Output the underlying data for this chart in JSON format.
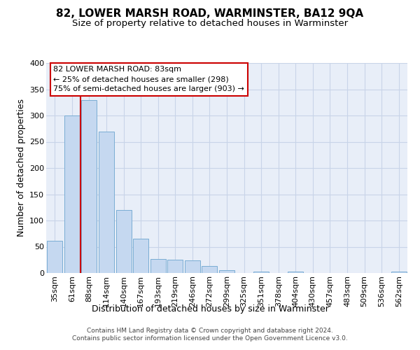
{
  "title": "82, LOWER MARSH ROAD, WARMINSTER, BA12 9QA",
  "subtitle": "Size of property relative to detached houses in Warminster",
  "xlabel": "Distribution of detached houses by size in Warminster",
  "ylabel": "Number of detached properties",
  "bin_labels": [
    "35sqm",
    "61sqm",
    "88sqm",
    "114sqm",
    "140sqm",
    "167sqm",
    "193sqm",
    "219sqm",
    "246sqm",
    "272sqm",
    "299sqm",
    "325sqm",
    "351sqm",
    "378sqm",
    "404sqm",
    "430sqm",
    "457sqm",
    "483sqm",
    "509sqm",
    "536sqm",
    "562sqm"
  ],
  "bar_values": [
    62,
    300,
    330,
    270,
    120,
    65,
    27,
    26,
    24,
    13,
    5,
    0,
    3,
    0,
    3,
    0,
    0,
    0,
    0,
    0,
    3
  ],
  "bar_color": "#c5d8f0",
  "bar_edge_color": "#7aadd4",
  "vline_x": 2,
  "annotation_line1": "82 LOWER MARSH ROAD: 83sqm",
  "annotation_line2": "← 25% of detached houses are smaller (298)",
  "annotation_line3": "75% of semi-detached houses are larger (903) →",
  "annotation_box_color": "#ffffff",
  "annotation_box_edge": "#cc0000",
  "vline_color": "#cc0000",
  "ylim": [
    0,
    400
  ],
  "yticks": [
    0,
    50,
    100,
    150,
    200,
    250,
    300,
    350,
    400
  ],
  "grid_color": "#c8d4e8",
  "bg_color": "#e8eef8",
  "title_fontsize": 11,
  "subtitle_fontsize": 9.5,
  "axis_label_fontsize": 9,
  "tick_fontsize": 8,
  "footer_text": "Contains HM Land Registry data © Crown copyright and database right 2024.\nContains public sector information licensed under the Open Government Licence v3.0."
}
